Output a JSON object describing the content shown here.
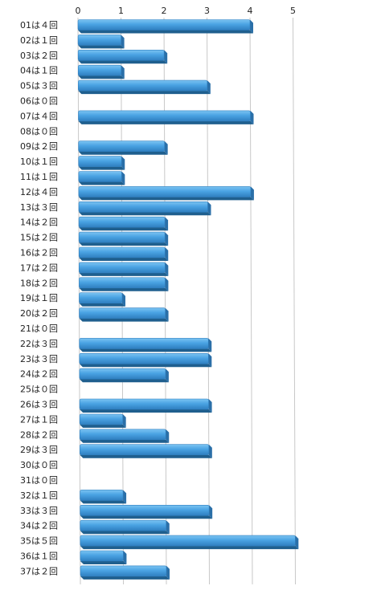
{
  "chart_data": {
    "type": "bar",
    "orientation": "horizontal",
    "title": "",
    "xlabel": "",
    "ylabel": "",
    "xlim": [
      0,
      5
    ],
    "ticks": [
      "0",
      "1",
      "2",
      "3",
      "4",
      "5"
    ],
    "grid": true,
    "legend": "none",
    "bar_color": "#4aa3e3",
    "bar_dark_color": "#1f5f8e",
    "categories": [
      "01は４回",
      "02は１回",
      "03は２回",
      "04は１回",
      "05は３回",
      "06は０回",
      "07は４回",
      "08は０回",
      "09は２回",
      "10は１回",
      "11は１回",
      "12は４回",
      "13は３回",
      "14は２回",
      "15は２回",
      "16は２回",
      "17は２回",
      "18は２回",
      "19は１回",
      "20は２回",
      "21は０回",
      "22は３回",
      "23は３回",
      "24は２回",
      "25は０回",
      "26は３回",
      "27は１回",
      "28は２回",
      "29は３回",
      "30は０回",
      "31は０回",
      "32は１回",
      "33は３回",
      "34は２回",
      "35は５回",
      "36は１回",
      "37は２回"
    ],
    "values": [
      4,
      1,
      2,
      1,
      3,
      0,
      4,
      0,
      2,
      1,
      1,
      4,
      3,
      2,
      2,
      2,
      2,
      2,
      1,
      2,
      0,
      3,
      3,
      2,
      0,
      3,
      1,
      2,
      3,
      0,
      0,
      1,
      3,
      2,
      5,
      1,
      2
    ]
  }
}
